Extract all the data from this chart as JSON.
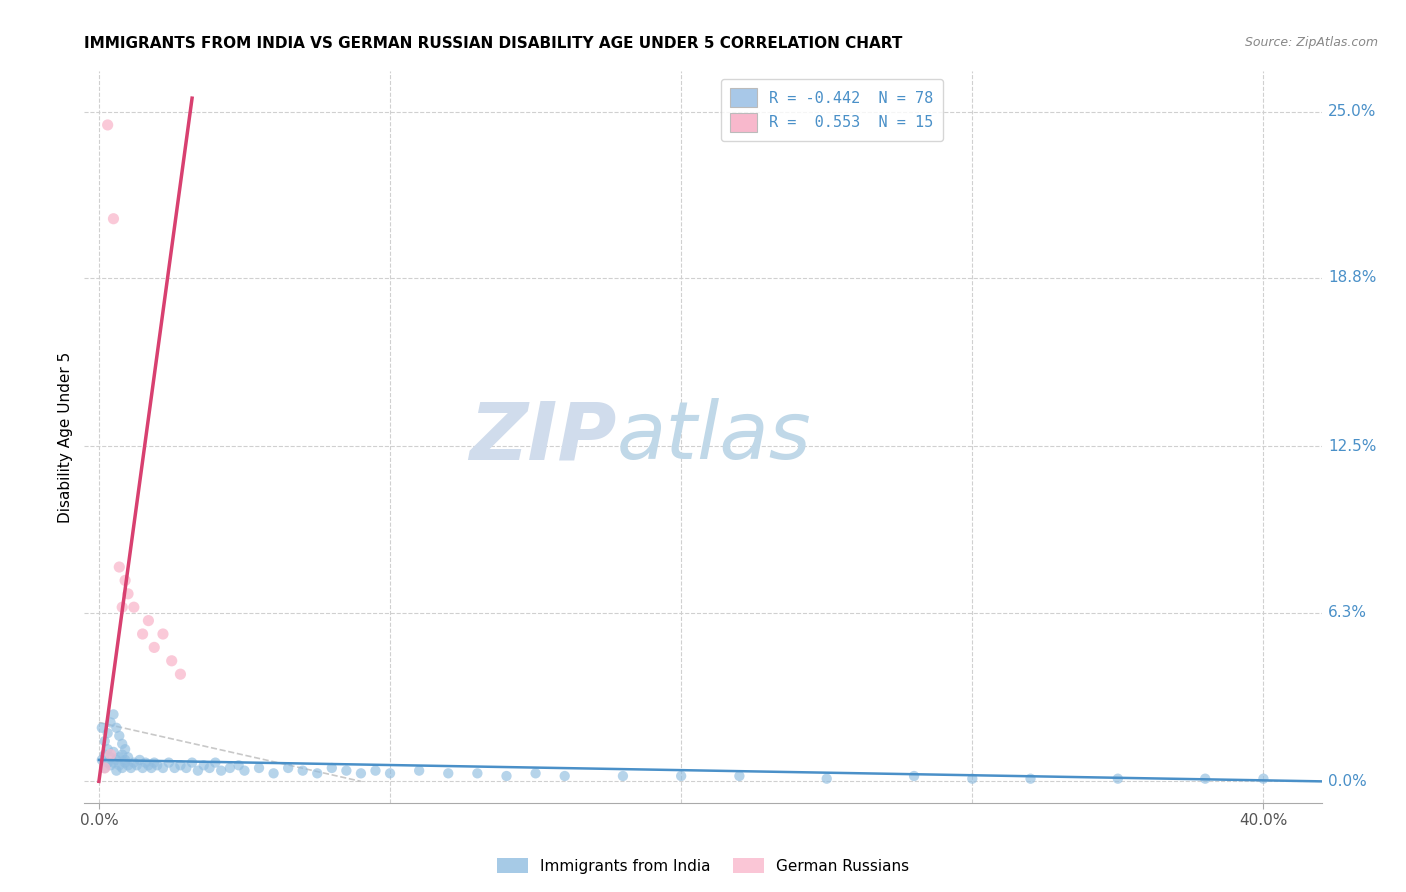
{
  "title": "IMMIGRANTS FROM INDIA VS GERMAN RUSSIAN DISABILITY AGE UNDER 5 CORRELATION CHART",
  "source": "Source: ZipAtlas.com",
  "ylabel_label": "Disability Age Under 5",
  "legend_entries": [
    {
      "label": "R = -0.442  N = 78",
      "color": "#a8c8e8"
    },
    {
      "label": "R =  0.553  N = 15",
      "color": "#f8b8cc"
    }
  ],
  "blue_scatter_x": [
    0.001,
    0.002,
    0.002,
    0.003,
    0.003,
    0.004,
    0.004,
    0.005,
    0.005,
    0.006,
    0.006,
    0.007,
    0.007,
    0.008,
    0.008,
    0.009,
    0.009,
    0.01,
    0.01,
    0.011,
    0.012,
    0.013,
    0.014,
    0.015,
    0.016,
    0.017,
    0.018,
    0.019,
    0.02,
    0.022,
    0.024,
    0.026,
    0.028,
    0.03,
    0.032,
    0.034,
    0.036,
    0.038,
    0.04,
    0.042,
    0.045,
    0.048,
    0.05,
    0.055,
    0.06,
    0.065,
    0.07,
    0.075,
    0.08,
    0.085,
    0.09,
    0.095,
    0.1,
    0.11,
    0.12,
    0.13,
    0.14,
    0.15,
    0.16,
    0.18,
    0.2,
    0.22,
    0.25,
    0.28,
    0.3,
    0.32,
    0.35,
    0.38,
    0.4,
    0.001,
    0.002,
    0.003,
    0.004,
    0.005,
    0.006,
    0.007,
    0.008,
    0.009
  ],
  "blue_scatter_y": [
    0.008,
    0.01,
    0.005,
    0.007,
    0.012,
    0.009,
    0.006,
    0.011,
    0.007,
    0.008,
    0.004,
    0.009,
    0.006,
    0.01,
    0.005,
    0.007,
    0.008,
    0.006,
    0.009,
    0.005,
    0.007,
    0.006,
    0.008,
    0.005,
    0.007,
    0.006,
    0.005,
    0.007,
    0.006,
    0.005,
    0.007,
    0.005,
    0.006,
    0.005,
    0.007,
    0.004,
    0.006,
    0.005,
    0.007,
    0.004,
    0.005,
    0.006,
    0.004,
    0.005,
    0.003,
    0.005,
    0.004,
    0.003,
    0.005,
    0.004,
    0.003,
    0.004,
    0.003,
    0.004,
    0.003,
    0.003,
    0.002,
    0.003,
    0.002,
    0.002,
    0.002,
    0.002,
    0.001,
    0.002,
    0.001,
    0.001,
    0.001,
    0.001,
    0.001,
    0.02,
    0.015,
    0.018,
    0.022,
    0.025,
    0.02,
    0.017,
    0.014,
    0.012
  ],
  "pink_scatter_x": [
    0.003,
    0.005,
    0.007,
    0.008,
    0.009,
    0.01,
    0.012,
    0.015,
    0.017,
    0.019,
    0.022,
    0.025,
    0.028,
    0.002,
    0.004
  ],
  "pink_scatter_y": [
    0.245,
    0.21,
    0.08,
    0.065,
    0.075,
    0.07,
    0.065,
    0.055,
    0.06,
    0.05,
    0.055,
    0.045,
    0.04,
    0.005,
    0.01
  ],
  "blue_line_x": [
    0.0,
    0.42
  ],
  "blue_line_y": [
    0.008,
    0.0
  ],
  "pink_line_x": [
    0.0,
    0.032
  ],
  "pink_line_y": [
    0.0,
    0.255
  ],
  "blue_dash_line_x": [
    0.0,
    0.09
  ],
  "blue_dash_line_y": [
    0.022,
    0.0
  ],
  "watermark_zip": "ZIP",
  "watermark_atlas": "atlas",
  "xlim": [
    -0.005,
    0.42
  ],
  "ylim": [
    -0.008,
    0.265
  ],
  "ytick_positions": [
    0.0,
    0.063,
    0.125,
    0.188,
    0.25
  ],
  "ytick_labels": [
    "0.0%",
    "6.3%",
    "12.5%",
    "18.8%",
    "25.0%"
  ],
  "xtick_positions": [
    0.0,
    0.4
  ],
  "xtick_labels": [
    "0.0%",
    "40.0%"
  ],
  "blue_color": "#90bde0",
  "pink_color": "#f9b8cc",
  "blue_line_color": "#4a90c8",
  "pink_line_color": "#d84070",
  "grid_color": "#d0d0d0",
  "title_fontsize": 11,
  "watermark_zip_color": "#d0dcec",
  "watermark_atlas_color": "#c0d8e8"
}
